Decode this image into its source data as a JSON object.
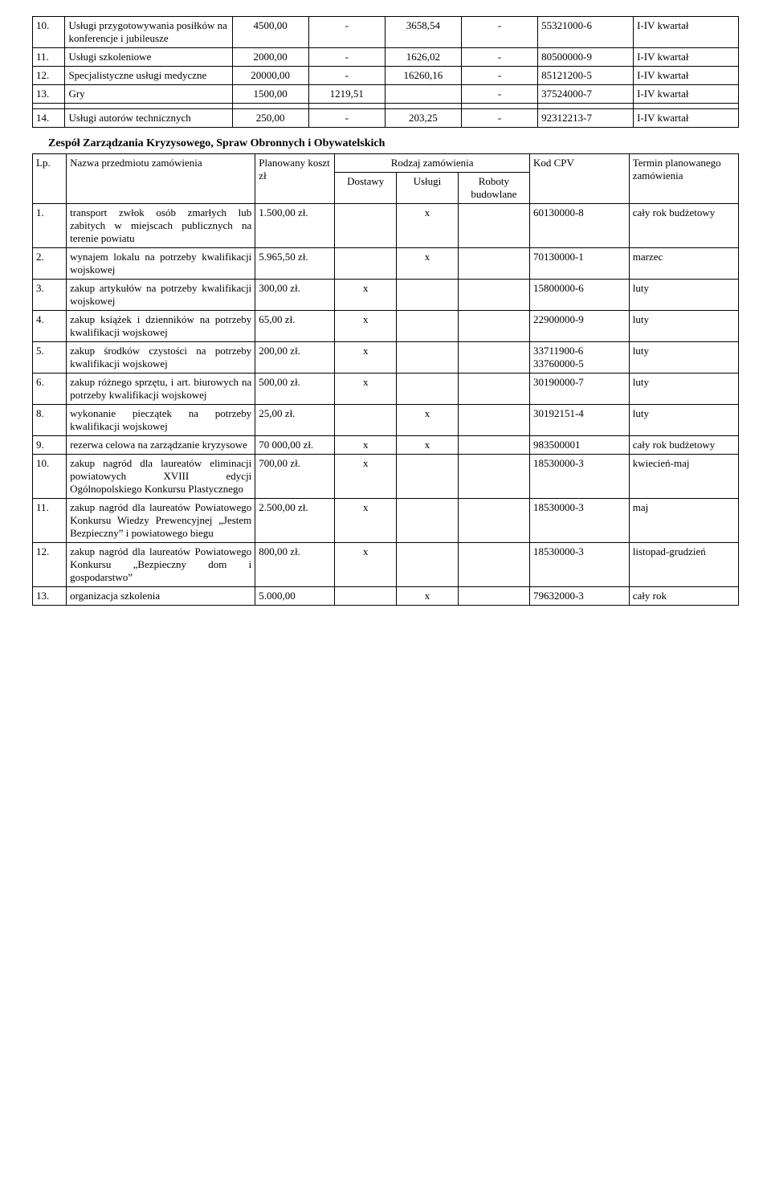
{
  "table1": {
    "rows": [
      {
        "n": "10.",
        "desc": "Usługi przygotowywania posiłków na konferencje i jubileusze",
        "c1": "4500,00",
        "c2": "-",
        "c3": "3658,54",
        "c4": "-",
        "c5": "55321000-6",
        "c6": "I-IV kwartał"
      },
      {
        "n": "11.",
        "desc": "Usługi szkoleniowe",
        "c1": "2000,00",
        "c2": "-",
        "c3": "1626,02",
        "c4": "-",
        "c5": "80500000-9",
        "c6": "I-IV kwartał"
      },
      {
        "n": "12.",
        "desc": "Specjalistyczne usługi medyczne",
        "c1": "20000,00",
        "c2": "-",
        "c3": "16260,16",
        "c4": "-",
        "c5": "85121200-5",
        "c6": "I-IV kwartał"
      },
      {
        "n": "13.",
        "desc": "Gry",
        "c1": "1500,00",
        "c2": "1219,51",
        "c3": "",
        "c4": "-",
        "c5": "37524000-7",
        "c6": "I-IV kwartał"
      }
    ],
    "gapRow": {
      "n": "",
      "desc": "",
      "c1": "",
      "c2": "",
      "c3": "",
      "c4": "",
      "c5": "",
      "c6": ""
    },
    "lastRow": {
      "n": "14.",
      "desc": "Usługi autorów technicznych",
      "c1": "250,00",
      "c2": "-",
      "c3": "203,25",
      "c4": "-",
      "c5": "92312213-7",
      "c6": "I-IV kwartał"
    }
  },
  "section2": {
    "title": "Zespół Zarządzania Kryzysowego, Spraw Obronnych i Obywatelskich",
    "head": {
      "lp": "Lp.",
      "nazwa": "Nazwa przedmiotu zamówienia",
      "plan": "Planowany koszt zł",
      "rodzaj": "Rodzaj zamówienia",
      "dostawy": "Dostawy",
      "uslugi": "Usługi",
      "roboty": "Roboty budowlane",
      "cpv": "Kod CPV",
      "termin": "Termin planowanego zamówienia"
    },
    "rows": [
      {
        "n": "1.",
        "desc": "transport zwłok osób zmarłych lub zabitych w miejscach publicznych na terenie powiatu",
        "plan": "1.500,00 zł.",
        "d": "",
        "u": "x",
        "r": "",
        "cpv": "60130000-8",
        "t": "cały rok budżetowy"
      },
      {
        "n": "2.",
        "desc": "wynajem lokalu na potrzeby kwalifikacji wojskowej",
        "plan": "5.965,50 zł.",
        "d": "",
        "u": "x",
        "r": "",
        "cpv": "70130000-1",
        "t": "marzec"
      },
      {
        "n": "3.",
        "desc": "zakup artykułów na potrzeby kwalifikacji wojskowej",
        "plan": "300,00 zł.",
        "d": "x",
        "u": "",
        "r": "",
        "cpv": "15800000-6",
        "t": "luty"
      },
      {
        "n": "4.",
        "desc": "zakup książek i dzienników na potrzeby kwalifikacji wojskowej",
        "plan": "65,00 zł.",
        "d": "x",
        "u": "",
        "r": "",
        "cpv": "22900000-9",
        "t": "luty"
      },
      {
        "n": "5.",
        "desc": "zakup środków czystości na potrzeby kwalifikacji wojskowej",
        "plan": "200,00 zł.",
        "d": "x",
        "u": "",
        "r": "",
        "cpv": "33711900-6 33760000-5",
        "t": "luty"
      },
      {
        "n": "6.",
        "desc": "zakup różnego sprzętu, i art. biurowych na potrzeby kwalifikacji wojskowej",
        "plan": "500,00 zł.",
        "d": "x",
        "u": "",
        "r": "",
        "cpv": "30190000-7",
        "t": "luty"
      },
      {
        "n": "8.",
        "desc": "wykonanie pieczątek na potrzeby kwalifikacji wojskowej",
        "plan": "25,00 zł.",
        "d": "",
        "u": "x",
        "r": "",
        "cpv": "30192151-4",
        "t": "luty"
      },
      {
        "n": "9.",
        "desc": "rezerwa celowa na zarządzanie kryzysowe",
        "plan": "70 000,00 zł.",
        "d": "x",
        "u": "x",
        "r": "",
        "cpv": "983500001",
        "t": "cały rok budżetowy"
      },
      {
        "n": "10.",
        "desc": "zakup nagród dla laureatów eliminacji powiatowych XVIII edycji Ogólnopolskiego Konkursu Plastycznego",
        "plan": "700,00 zł.",
        "d": "x",
        "u": "",
        "r": "",
        "cpv": "18530000-3",
        "t": "kwiecień-maj"
      },
      {
        "n": "11.",
        "desc": "zakup nagród dla laureatów Powiatowego Konkursu Wiedzy Prewencyjnej „Jestem Bezpieczny” i powiatowego biegu",
        "plan": "2.500,00 zł.",
        "d": "x",
        "u": "",
        "r": "",
        "cpv": "18530000-3",
        "t": "maj"
      },
      {
        "n": "12.",
        "desc": "zakup nagród dla laureatów Powiatowego Konkursu „Bezpieczny dom i gospodarstwo”",
        "plan": "800,00 zł.",
        "d": "x",
        "u": "",
        "r": "",
        "cpv": "18530000-3",
        "t": "listopad-grudzień"
      },
      {
        "n": "13.",
        "desc": "organizacja szkolenia",
        "plan": "5.000,00",
        "d": "",
        "u": "x",
        "r": "",
        "cpv": "79632000-3",
        "t": "cały rok"
      }
    ]
  }
}
